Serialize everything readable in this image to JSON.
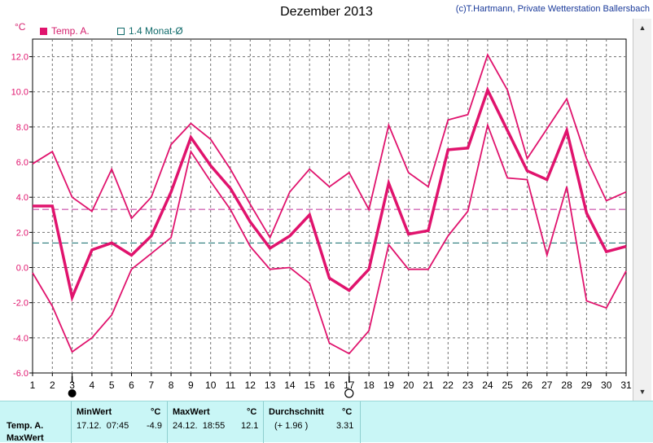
{
  "title": "Dezember 2013",
  "credit": "(c)T.Hartmann, Private Wetterstation Ballersbach",
  "unit_label": "°C",
  "legend": {
    "temp": "Temp. A.",
    "avg": "1.4 Monat-Ø"
  },
  "colors": {
    "temp": "#e0136d",
    "avg_line": "#0f6a6a",
    "avg_pink": "#c0309a",
    "grid": "#707070",
    "table_bg": "#c9f6f6"
  },
  "icons": {
    "scroll_up": "▲",
    "scroll_down": "▼",
    "full_moon": "○",
    "new_moon": "●"
  },
  "markers": {
    "new_moon_day": 3,
    "full_moon_day": 17
  },
  "chart_data": {
    "type": "line",
    "x": [
      1,
      2,
      3,
      4,
      5,
      6,
      7,
      8,
      9,
      10,
      11,
      12,
      13,
      14,
      15,
      16,
      17,
      18,
      19,
      20,
      21,
      22,
      23,
      24,
      25,
      26,
      27,
      28,
      29,
      30,
      31
    ],
    "xlim": [
      1,
      31
    ],
    "ylim": [
      -6,
      13
    ],
    "yticks": [
      -6,
      -4,
      -2,
      0,
      2,
      4,
      6,
      8,
      10,
      12
    ],
    "ytick_labels": [
      "-6.0",
      "-4.0",
      "-2.0",
      "0.0",
      "2.0",
      "4.0",
      "6.0",
      "8.0",
      "10.0",
      "12.0"
    ],
    "grid": true,
    "series": [
      {
        "role": "max",
        "values": [
          5.9,
          6.6,
          4.0,
          3.2,
          5.6,
          2.8,
          4.0,
          7.0,
          8.2,
          7.3,
          5.6,
          3.6,
          1.7,
          4.3,
          5.6,
          4.6,
          5.4,
          3.3,
          8.1,
          5.4,
          4.6,
          8.4,
          8.7,
          12.1,
          10.1,
          6.2,
          7.9,
          9.6,
          6.2,
          3.8,
          4.3
        ]
      },
      {
        "role": "mean",
        "values": [
          3.5,
          3.5,
          -1.7,
          1.0,
          1.4,
          0.7,
          1.8,
          4.3,
          7.4,
          5.8,
          4.5,
          2.6,
          1.1,
          1.8,
          3.0,
          -0.6,
          -1.3,
          -0.1,
          4.8,
          1.9,
          2.1,
          6.7,
          6.8,
          10.1,
          7.8,
          5.5,
          5.0,
          7.8,
          3.1,
          0.9,
          1.2
        ]
      },
      {
        "role": "min",
        "values": [
          -0.3,
          -2.2,
          -4.8,
          -4.0,
          -2.7,
          -0.1,
          0.8,
          1.7,
          6.6,
          4.9,
          3.3,
          1.2,
          -0.1,
          0.0,
          -0.9,
          -4.3,
          -4.9,
          -3.6,
          1.3,
          -0.1,
          -0.1,
          1.8,
          3.2,
          8.1,
          5.1,
          5.0,
          0.7,
          4.6,
          -1.9,
          -2.3,
          -0.2
        ]
      }
    ],
    "reference_lines": [
      {
        "name": "1.4 Monat-Ø",
        "value": 1.4,
        "style": "dashed-teal"
      },
      {
        "value": 3.31,
        "style": "dashed-pink"
      }
    ]
  },
  "table": {
    "row_label": "Temp. A.",
    "row_label2": "MaxWert",
    "min": {
      "header": "MinWert",
      "unit": "°C",
      "datetime": "17.12.  07:45",
      "value": "-4.9"
    },
    "max": {
      "header": "MaxWert",
      "unit": "°C",
      "datetime": "24.12.  18:55",
      "value": "12.1"
    },
    "avg": {
      "header": "Durchschnitt",
      "unit": "°C",
      "delta": "(+ 1.96 )",
      "value": "3.31"
    }
  }
}
